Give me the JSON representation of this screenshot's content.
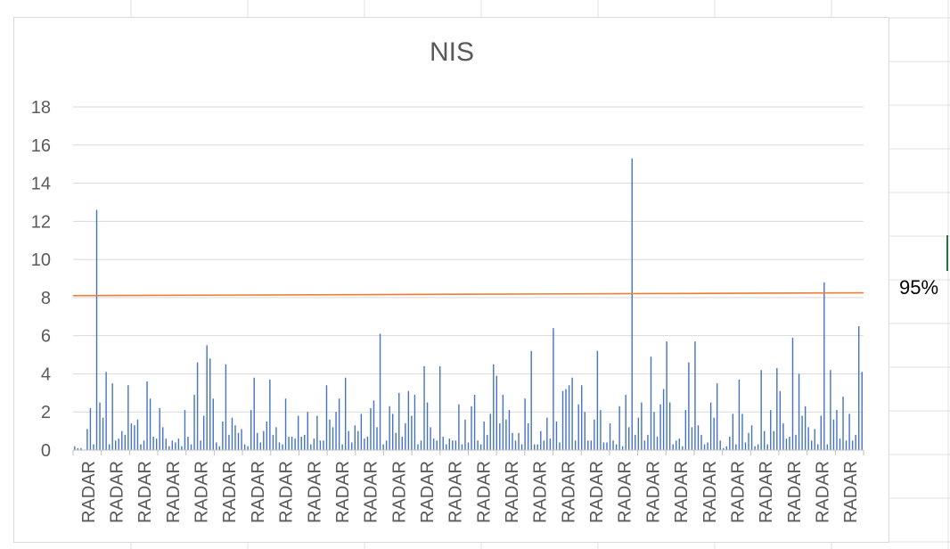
{
  "sheet": {
    "cell_label": "95%",
    "gridline_color": "#e0e0e0",
    "selection_color": "#217346"
  },
  "chart_data": {
    "type": "bar",
    "title": "NIS",
    "xlabel": "",
    "ylabel": "",
    "ylim": [
      0,
      18
    ],
    "yticks": [
      0,
      2,
      4,
      6,
      8,
      10,
      12,
      14,
      16,
      18
    ],
    "grid": true,
    "category_label": "RADAR",
    "category_label_count": 28,
    "bar_color": "#4472c4",
    "threshold_color": "#ed7d31",
    "threshold": {
      "start": 8.1,
      "end": 8.25
    },
    "values": [
      0.2,
      0.1,
      0.1,
      0.0,
      1.1,
      2.2,
      0.3,
      12.6,
      2.5,
      1.7,
      4.1,
      0.3,
      3.5,
      0.5,
      0.6,
      1.0,
      0.8,
      3.4,
      1.4,
      1.3,
      1.6,
      0.3,
      0.5,
      3.6,
      2.7,
      0.7,
      0.6,
      2.2,
      1.2,
      0.6,
      0.2,
      0.5,
      0.4,
      0.6,
      0.2,
      2.1,
      0.7,
      0.3,
      2.9,
      4.6,
      0.5,
      1.8,
      5.5,
      4.8,
      2.7,
      0.4,
      0.2,
      1.5,
      4.5,
      0.8,
      1.7,
      1.3,
      0.9,
      1.1,
      0.3,
      0.2,
      2.1,
      3.8,
      0.9,
      0.4,
      1.0,
      1.5,
      3.7,
      0.8,
      1.2,
      0.4,
      0.3,
      2.7,
      0.7,
      0.7,
      0.6,
      1.8,
      0.7,
      0.8,
      2.0,
      0.3,
      0.6,
      1.8,
      0.5,
      0.5,
      3.4,
      1.6,
      1.2,
      2.0,
      2.7,
      0.3,
      3.8,
      1.0,
      0.4,
      1.3,
      1.0,
      1.9,
      0.6,
      0.7,
      2.2,
      2.6,
      1.2,
      6.1,
      0.3,
      0.5,
      2.3,
      1.9,
      0.9,
      3.0,
      0.7,
      1.4,
      3.1,
      1.8,
      2.9,
      0.3,
      0.5,
      4.4,
      2.5,
      1.2,
      0.6,
      0.5,
      4.4,
      0.7,
      0.3,
      0.6,
      0.5,
      0.5,
      2.4,
      0.3,
      1.6,
      0.4,
      2.3,
      2.9,
      0.5,
      0.3,
      1.5,
      0.8,
      1.9,
      4.5,
      3.9,
      1.4,
      2.9,
      1.6,
      2.1,
      0.9,
      0.5,
      0.9,
      0.3,
      2.7,
      1.4,
      5.2,
      0.3,
      0.3,
      1.0,
      0.5,
      1.7,
      0.6,
      6.4,
      1.5,
      0.4,
      3.1,
      3.2,
      3.4,
      3.8,
      0.5,
      2.4,
      3.4,
      2.0,
      0.5,
      0.5,
      1.6,
      5.2,
      2.1,
      0.4,
      0.4,
      1.4,
      0.5,
      0.3,
      2.3,
      0.2,
      2.9,
      1.2,
      15.3,
      0.8,
      1.7,
      2.5,
      0.5,
      0.8,
      4.9,
      2.0,
      0.7,
      2.4,
      3.2,
      5.7,
      2.5,
      0.3,
      0.5,
      0.6,
      0.2,
      2.1,
      4.6,
      1.2,
      5.7,
      1.3,
      0.8,
      0.3,
      0.4,
      2.5,
      1.7,
      3.5,
      0.5,
      0.1,
      0.2,
      0.7,
      1.9,
      0.3,
      3.7,
      1.9,
      0.4,
      0.9,
      1.3,
      0.2,
      0.3,
      4.2,
      1.0,
      0.3,
      2.1,
      1.0,
      4.3,
      3.1,
      1.4,
      0.6,
      0.7,
      5.9,
      0.8,
      4.0,
      1.8,
      2.3,
      1.2,
      0.5,
      1.1,
      0.3,
      1.8,
      8.8,
      0.3,
      4.2,
      1.6,
      2.1,
      0.6,
      2.8,
      0.5,
      1.9,
      0.5,
      0.8,
      6.5,
      4.1
    ]
  }
}
